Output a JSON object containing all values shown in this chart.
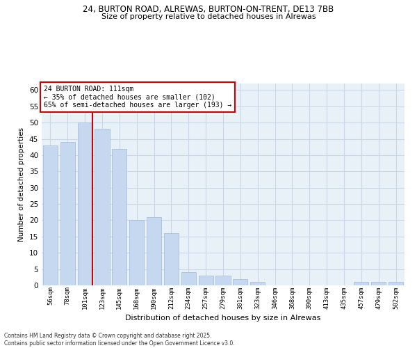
{
  "title1": "24, BURTON ROAD, ALREWAS, BURTON-ON-TRENT, DE13 7BB",
  "title2": "Size of property relative to detached houses in Alrewas",
  "xlabel": "Distribution of detached houses by size in Alrewas",
  "ylabel": "Number of detached properties",
  "categories": [
    "56sqm",
    "78sqm",
    "101sqm",
    "123sqm",
    "145sqm",
    "168sqm",
    "190sqm",
    "212sqm",
    "234sqm",
    "257sqm",
    "279sqm",
    "301sqm",
    "323sqm",
    "346sqm",
    "368sqm",
    "390sqm",
    "413sqm",
    "435sqm",
    "457sqm",
    "479sqm",
    "502sqm"
  ],
  "values": [
    43,
    44,
    50,
    48,
    42,
    20,
    21,
    16,
    4,
    3,
    3,
    2,
    1,
    0,
    0,
    0,
    0,
    0,
    1,
    1,
    1
  ],
  "bar_color": "#c5d8f0",
  "bar_edge_color": "#a0b8d8",
  "vline_color": "#cc0000",
  "annotation_text": "24 BURTON ROAD: 111sqm\n← 35% of detached houses are smaller (102)\n65% of semi-detached houses are larger (193) →",
  "annotation_box_color": "#ffffff",
  "annotation_box_edge": "#cc0000",
  "ylim": [
    0,
    62
  ],
  "yticks": [
    0,
    5,
    10,
    15,
    20,
    25,
    30,
    35,
    40,
    45,
    50,
    55,
    60
  ],
  "grid_color": "#c8d8e8",
  "bg_color": "#e8f0f8",
  "footnote": "Contains HM Land Registry data © Crown copyright and database right 2025.\nContains public sector information licensed under the Open Government Licence v3.0."
}
